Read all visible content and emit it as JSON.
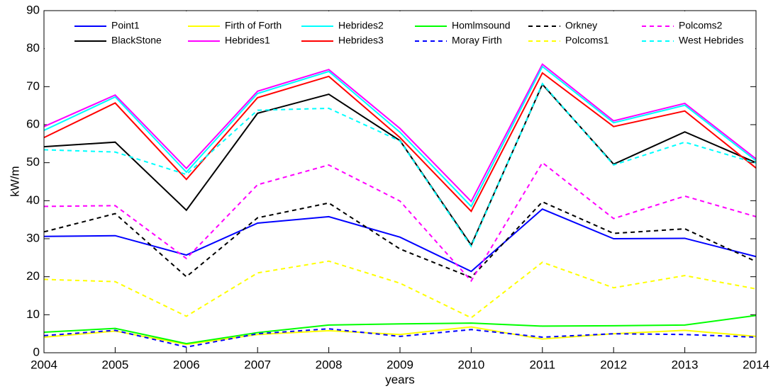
{
  "chart_data": {
    "type": "line",
    "x_label": "years",
    "y_label": "kW/m",
    "x": [
      2004,
      2005,
      2006,
      2007,
      2008,
      2009,
      2010,
      2011,
      2012,
      2013,
      2014
    ],
    "xlim": [
      2004,
      2014
    ],
    "xticks": [
      2004,
      2005,
      2006,
      2007,
      2008,
      2009,
      2010,
      2011,
      2012,
      2013,
      2014
    ],
    "ylim": [
      0,
      90
    ],
    "yticks": [
      0,
      10,
      20,
      30,
      40,
      50,
      60,
      70,
      80,
      90
    ],
    "grid": false,
    "legend": "top",
    "series": [
      {
        "name": "Point1",
        "color": "#0000ff",
        "style": "solid",
        "values": [
          30.6,
          30.8,
          25.7,
          34.1,
          35.8,
          30.4,
          21.4,
          37.8,
          30.0,
          30.1,
          25.3
        ]
      },
      {
        "name": "BlackStone",
        "color": "#000000",
        "style": "solid",
        "values": [
          54.2,
          55.4,
          37.5,
          63.0,
          68.0,
          55.8,
          28.3,
          70.6,
          49.6,
          58.1,
          50.0
        ]
      },
      {
        "name": "Firth of Forth",
        "color": "#ffff00",
        "style": "solid",
        "values": [
          4.1,
          5.7,
          2.2,
          4.8,
          5.8,
          4.8,
          6.8,
          3.6,
          5.0,
          5.9,
          4.3
        ]
      },
      {
        "name": "Hebrides1",
        "color": "#ff00ff",
        "style": "solid",
        "values": [
          59.5,
          67.8,
          48.5,
          68.8,
          74.5,
          59.0,
          39.8,
          75.9,
          61.0,
          65.6,
          51.0
        ]
      },
      {
        "name": "Hebrides2",
        "color": "#00ffff",
        "style": "solid",
        "values": [
          58.5,
          67.3,
          47.5,
          68.2,
          74.0,
          58.0,
          38.5,
          75.3,
          60.5,
          65.1,
          50.5
        ]
      },
      {
        "name": "Hebrides3",
        "color": "#ff0000",
        "style": "solid",
        "values": [
          56.6,
          65.7,
          45.6,
          67.1,
          72.7,
          56.6,
          37.2,
          73.6,
          59.5,
          63.6,
          48.6
        ]
      },
      {
        "name": "Homlmsound",
        "color": "#00ff00",
        "style": "solid",
        "values": [
          5.4,
          6.4,
          2.4,
          5.3,
          7.3,
          7.6,
          7.8,
          7.0,
          7.1,
          7.3,
          9.8
        ]
      },
      {
        "name": "Moray Firth",
        "color": "#0000ff",
        "style": "dashed",
        "values": [
          4.5,
          5.9,
          1.5,
          5.0,
          6.3,
          4.3,
          6.1,
          4.1,
          5.0,
          4.8,
          4.1
        ]
      },
      {
        "name": "Orkney",
        "color": "#000000",
        "style": "dashed",
        "values": [
          31.8,
          36.6,
          20.0,
          35.5,
          39.4,
          27.3,
          19.8,
          39.7,
          31.4,
          32.6,
          24.0
        ]
      },
      {
        "name": "Polcoms1",
        "color": "#ffff00",
        "style": "dashed",
        "values": [
          19.3,
          18.7,
          9.6,
          21.0,
          24.1,
          18.3,
          9.2,
          23.8,
          17.1,
          20.3,
          16.8
        ]
      },
      {
        "name": "Polcoms2",
        "color": "#ff00ff",
        "style": "dashed",
        "values": [
          38.5,
          38.7,
          24.8,
          44.2,
          49.4,
          39.9,
          18.9,
          50.0,
          35.3,
          41.2,
          35.8
        ]
      },
      {
        "name": "West Hebrides",
        "color": "#00ffff",
        "style": "dashed",
        "values": [
          53.4,
          52.8,
          46.9,
          63.8,
          64.3,
          55.7,
          28.0,
          70.8,
          49.4,
          55.4,
          49.9
        ]
      }
    ]
  }
}
